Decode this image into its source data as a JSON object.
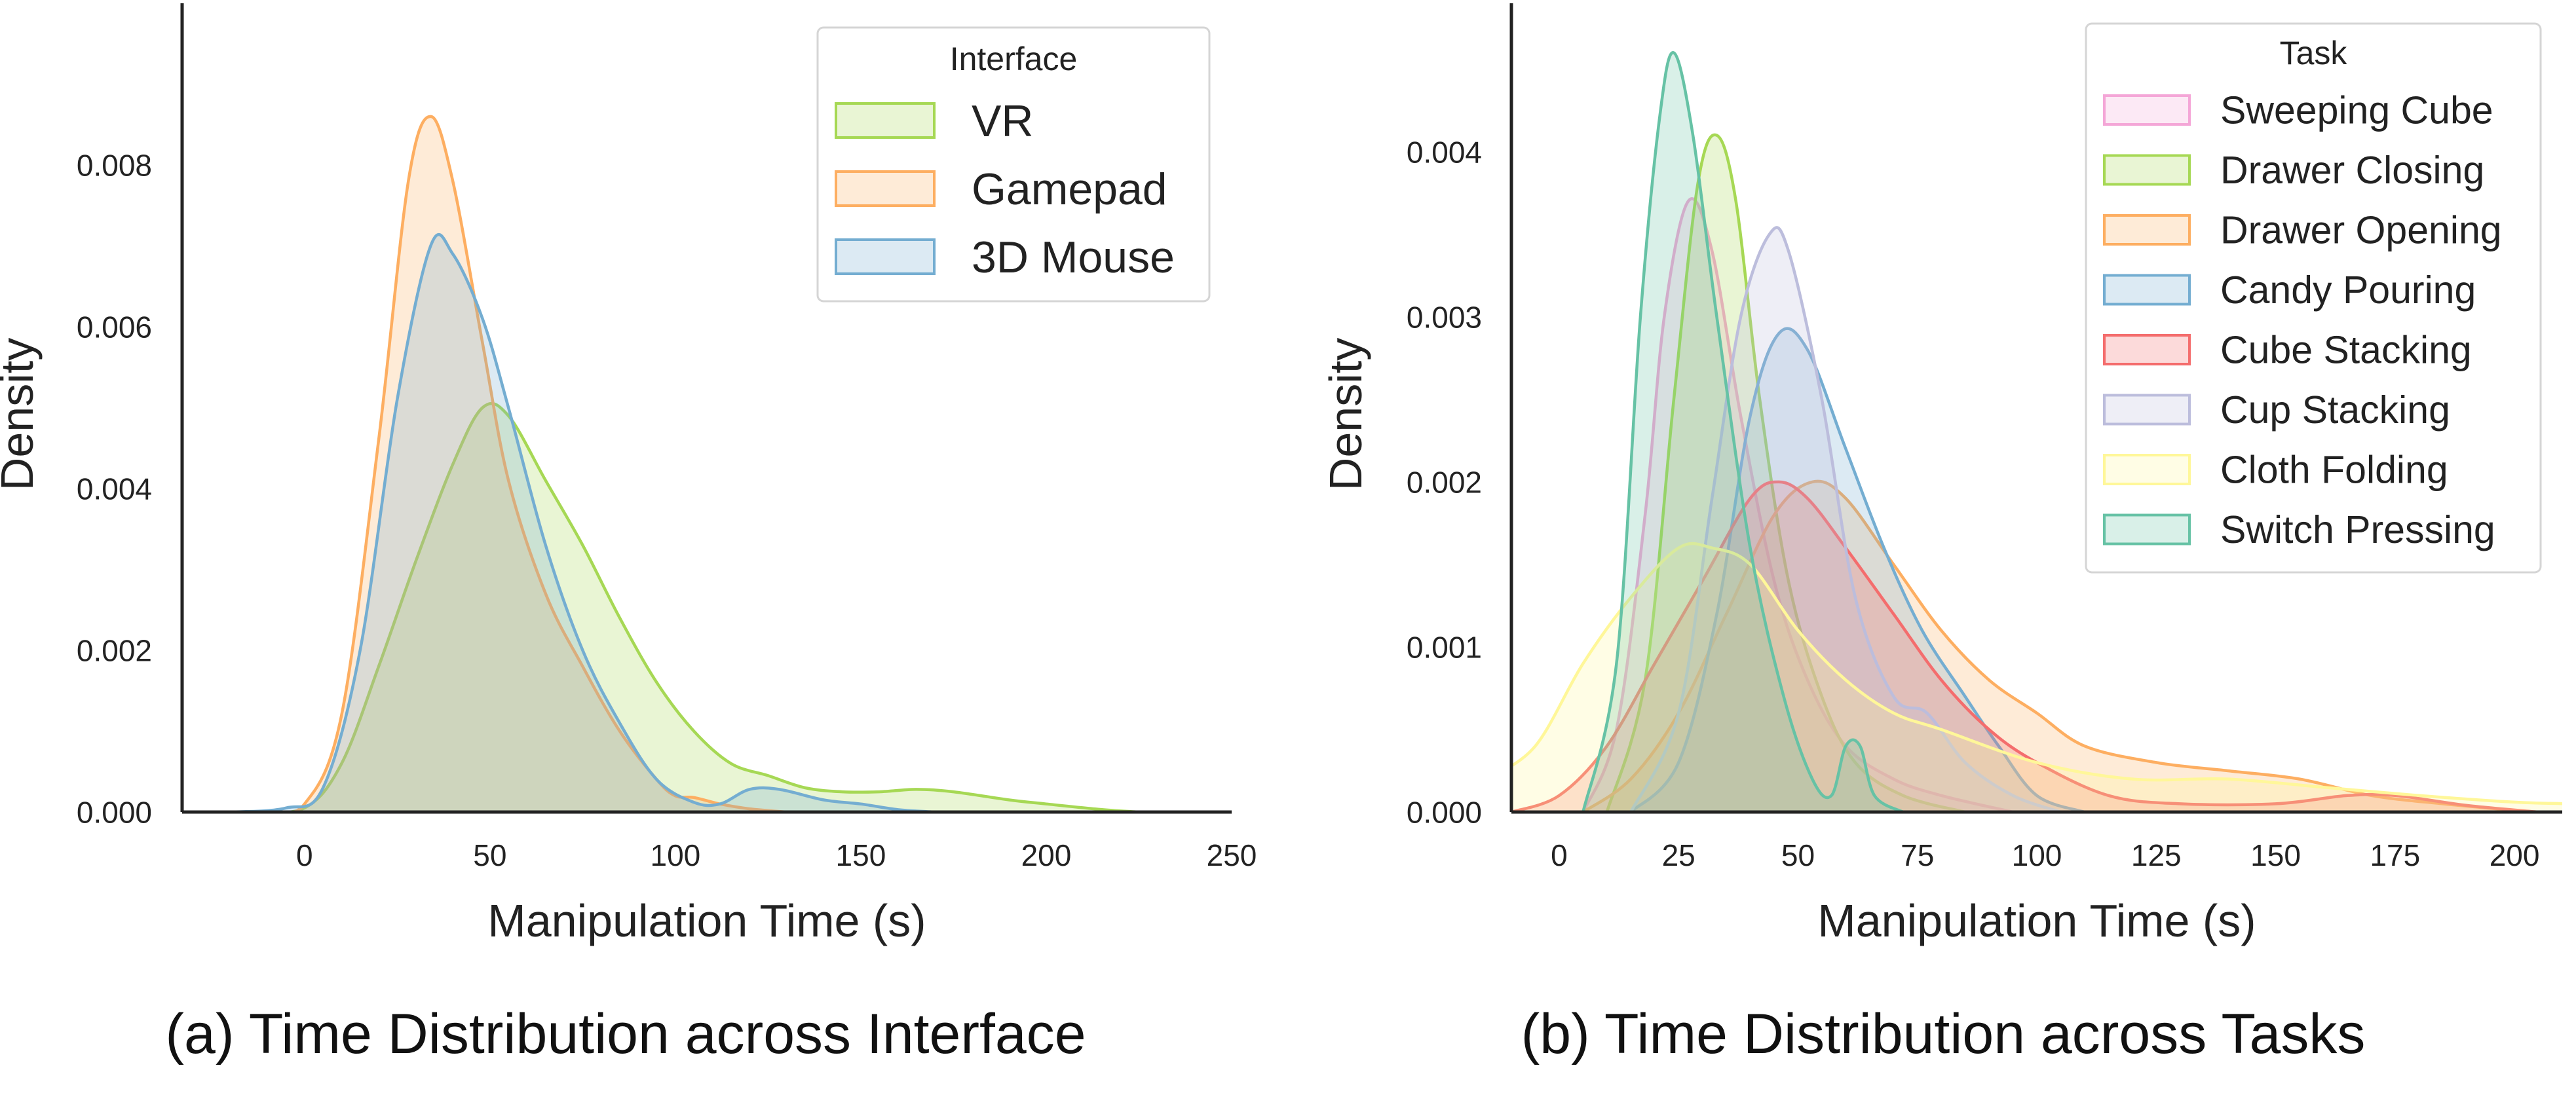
{
  "chart_data": [
    {
      "type": "area",
      "caption": "(a) Time Distribution across Interface",
      "xlabel": "Manipulation Time (s)",
      "ylabel": "Density",
      "xlim": [
        -33,
        250
      ],
      "ylim": [
        0,
        0.01
      ],
      "xticks": [
        0,
        50,
        100,
        150,
        200,
        250
      ],
      "yticks": [
        0.0,
        0.002,
        0.004,
        0.006,
        0.008
      ],
      "ytick_labels": [
        "0.000",
        "0.002",
        "0.004",
        "0.006",
        "0.008"
      ],
      "grid": false,
      "legend": {
        "title": "Interface",
        "placement": "top-right"
      },
      "series": [
        {
          "name": "VR",
          "color": "#a6d854",
          "points": [
            [
              -15,
              0
            ],
            [
              0,
              5e-05
            ],
            [
              10,
              0.0006
            ],
            [
              20,
              0.0018
            ],
            [
              30,
              0.0031
            ],
            [
              40,
              0.0043
            ],
            [
              48,
              0.005
            ],
            [
              55,
              0.0049
            ],
            [
              65,
              0.0041
            ],
            [
              75,
              0.0033
            ],
            [
              85,
              0.0024
            ],
            [
              95,
              0.0016
            ],
            [
              105,
              0.001
            ],
            [
              115,
              0.0006
            ],
            [
              125,
              0.00045
            ],
            [
              135,
              0.0003
            ],
            [
              145,
              0.00025
            ],
            [
              155,
              0.00025
            ],
            [
              165,
              0.00028
            ],
            [
              175,
              0.00025
            ],
            [
              190,
              0.00015
            ],
            [
              200,
              0.0001
            ],
            [
              215,
              3e-05
            ],
            [
              225,
              0
            ]
          ]
        },
        {
          "name": "Gamepad",
          "color": "#fdae61",
          "points": [
            [
              -10,
              0
            ],
            [
              0,
              0.0001
            ],
            [
              10,
              0.0012
            ],
            [
              20,
              0.0046
            ],
            [
              28,
              0.0078
            ],
            [
              34,
              0.0086
            ],
            [
              40,
              0.0078
            ],
            [
              48,
              0.0058
            ],
            [
              55,
              0.0041
            ],
            [
              65,
              0.0027
            ],
            [
              75,
              0.0018
            ],
            [
              85,
              0.001
            ],
            [
              95,
              0.0004
            ],
            [
              100,
              0.0002
            ],
            [
              105,
              0.00018
            ],
            [
              112,
              0.0001
            ],
            [
              120,
              4e-05
            ],
            [
              130,
              0
            ]
          ]
        },
        {
          "name": "3D Mouse",
          "color": "#74add1",
          "points": [
            [
              -20,
              0
            ],
            [
              -5,
              5e-05
            ],
            [
              5,
              0.0003
            ],
            [
              15,
              0.002
            ],
            [
              25,
              0.0051
            ],
            [
              34,
              0.007
            ],
            [
              40,
              0.0069
            ],
            [
              48,
              0.0061
            ],
            [
              55,
              0.005
            ],
            [
              65,
              0.0033
            ],
            [
              75,
              0.002
            ],
            [
              85,
              0.0011
            ],
            [
              95,
              0.0004
            ],
            [
              105,
              0.00012
            ],
            [
              112,
              0.0001
            ],
            [
              120,
              0.00028
            ],
            [
              128,
              0.00028
            ],
            [
              140,
              0.00015
            ],
            [
              150,
              0.0001
            ],
            [
              160,
              3e-05
            ],
            [
              170,
              0
            ]
          ]
        }
      ]
    },
    {
      "type": "area",
      "caption": "(b) Time Distribution across Tasks",
      "xlabel": "Manipulation Time (s)",
      "ylabel": "Density",
      "xlim": [
        -10,
        210
      ],
      "ylim": [
        0,
        0.0049
      ],
      "xticks": [
        0,
        25,
        50,
        75,
        100,
        125,
        150,
        175,
        200
      ],
      "yticks": [
        0.0,
        0.001,
        0.002,
        0.003,
        0.004
      ],
      "ytick_labels": [
        "0.000",
        "0.001",
        "0.002",
        "0.003",
        "0.004"
      ],
      "grid": false,
      "legend": {
        "title": "Task",
        "placement": "top-right"
      },
      "series": [
        {
          "name": "Sweeping Cube",
          "color": "#f4a6d7",
          "points": [
            [
              5,
              0
            ],
            [
              12,
              0.0005
            ],
            [
              18,
              0.0018
            ],
            [
              22,
              0.003
            ],
            [
              27,
              0.0037
            ],
            [
              32,
              0.0034
            ],
            [
              38,
              0.0024
            ],
            [
              45,
              0.0014
            ],
            [
              52,
              0.0008
            ],
            [
              60,
              0.0004
            ],
            [
              70,
              0.0002
            ],
            [
              80,
              0.0001
            ],
            [
              95,
              0
            ]
          ]
        },
        {
          "name": "Drawer Closing",
          "color": "#a6d854",
          "points": [
            [
              10,
              0
            ],
            [
              18,
              0.0008
            ],
            [
              24,
              0.0025
            ],
            [
              29,
              0.0038
            ],
            [
              33,
              0.0041
            ],
            [
              37,
              0.0037
            ],
            [
              42,
              0.0025
            ],
            [
              48,
              0.0014
            ],
            [
              55,
              0.0007
            ],
            [
              62,
              0.0003
            ],
            [
              72,
              0.0001
            ],
            [
              85,
              0
            ]
          ]
        },
        {
          "name": "Drawer Opening",
          "color": "#fdae61",
          "points": [
            [
              5,
              0
            ],
            [
              15,
              0.0002
            ],
            [
              25,
              0.0006
            ],
            [
              35,
              0.0012
            ],
            [
              45,
              0.0018
            ],
            [
              53,
              0.002
            ],
            [
              60,
              0.0019
            ],
            [
              70,
              0.0015
            ],
            [
              80,
              0.0011
            ],
            [
              90,
              0.0008
            ],
            [
              100,
              0.0006
            ],
            [
              110,
              0.0004
            ],
            [
              125,
              0.0003
            ],
            [
              140,
              0.00025
            ],
            [
              155,
              0.0002
            ],
            [
              170,
              0.0001
            ],
            [
              185,
              5e-05
            ],
            [
              200,
              1e-05
            ]
          ]
        },
        {
          "name": "Candy Pouring",
          "color": "#74add1",
          "points": [
            [
              15,
              0
            ],
            [
              25,
              0.0003
            ],
            [
              33,
              0.0012
            ],
            [
              40,
              0.0024
            ],
            [
              46,
              0.0029
            ],
            [
              52,
              0.0028
            ],
            [
              60,
              0.0022
            ],
            [
              68,
              0.0016
            ],
            [
              76,
              0.0011
            ],
            [
              85,
              0.0007
            ],
            [
              92,
              0.0004
            ],
            [
              100,
              0.0001
            ],
            [
              110,
              0
            ]
          ]
        },
        {
          "name": "Cube Stacking",
          "color": "#f46d6d",
          "points": [
            [
              -10,
              0
            ],
            [
              0,
              0.0001
            ],
            [
              10,
              0.0004
            ],
            [
              20,
              0.0009
            ],
            [
              30,
              0.0014
            ],
            [
              40,
              0.0019
            ],
            [
              46,
              0.002
            ],
            [
              52,
              0.0019
            ],
            [
              60,
              0.0016
            ],
            [
              70,
              0.0012
            ],
            [
              80,
              0.0008
            ],
            [
              90,
              0.0005
            ],
            [
              100,
              0.0003
            ],
            [
              115,
              0.0001
            ],
            [
              130,
              5e-05
            ],
            [
              150,
              5e-05
            ],
            [
              165,
              0.0001
            ],
            [
              175,
              0.0001
            ],
            [
              190,
              4e-05
            ],
            [
              205,
              0
            ]
          ]
        },
        {
          "name": "Cup Stacking",
          "color": "#bcbddc",
          "points": [
            [
              15,
              0
            ],
            [
              25,
              0.0006
            ],
            [
              32,
              0.0019
            ],
            [
              38,
              0.003
            ],
            [
              44,
              0.0035
            ],
            [
              48,
              0.0034
            ],
            [
              55,
              0.0025
            ],
            [
              62,
              0.0013
            ],
            [
              70,
              0.0007
            ],
            [
              77,
              0.0006
            ],
            [
              85,
              0.0003
            ],
            [
              95,
              0.0001
            ],
            [
              105,
              0
            ]
          ]
        },
        {
          "name": "Cloth Folding",
          "color": "#fff799",
          "points": [
            [
              -15,
              0.0002
            ],
            [
              -5,
              0.0004
            ],
            [
              5,
              0.0009
            ],
            [
              15,
              0.0013
            ],
            [
              25,
              0.0016
            ],
            [
              32,
              0.0016
            ],
            [
              40,
              0.0015
            ],
            [
              50,
              0.0011
            ],
            [
              60,
              0.0008
            ],
            [
              70,
              0.0006
            ],
            [
              80,
              0.0005
            ],
            [
              100,
              0.0003
            ],
            [
              120,
              0.0002
            ],
            [
              140,
              0.0002
            ],
            [
              160,
              0.00015
            ],
            [
              180,
              0.0001
            ],
            [
              200,
              6e-05
            ],
            [
              212,
              5e-05
            ]
          ]
        },
        {
          "name": "Switch Pressing",
          "color": "#66c2a5",
          "points": [
            [
              5,
              0
            ],
            [
              12,
              0.0009
            ],
            [
              17,
              0.003
            ],
            [
              21,
              0.0042
            ],
            [
              24,
              0.0046
            ],
            [
              28,
              0.0041
            ],
            [
              33,
              0.003
            ],
            [
              40,
              0.0016
            ],
            [
              47,
              0.0007
            ],
            [
              53,
              0.0002
            ],
            [
              57,
              0.0001
            ],
            [
              60,
              0.0004
            ],
            [
              63,
              0.0004
            ],
            [
              66,
              0.0001
            ],
            [
              72,
              0
            ]
          ]
        }
      ]
    }
  ]
}
